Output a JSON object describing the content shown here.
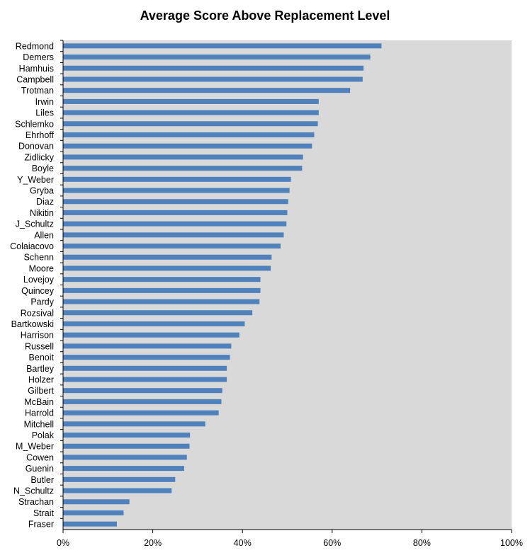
{
  "chart_data": {
    "type": "bar",
    "orientation": "horizontal",
    "title": "Average Score Above Replacement Level",
    "xlabel": "",
    "ylabel": "",
    "xlim": [
      0,
      1
    ],
    "x_ticks": [
      "0%",
      "20%",
      "40%",
      "60%",
      "80%",
      "100%"
    ],
    "grid": false,
    "legend": "none",
    "bar_color": "#4f81bd",
    "plot_background": "#d9d9d9",
    "categories": [
      "Redmond",
      "Demers",
      "Hamhuis",
      "Campbell",
      "Trotman",
      "Irwin",
      "Liles",
      "Schlemko",
      "Ehrhoff",
      "Donovan",
      "Zidlicky",
      "Boyle",
      "Y_Weber",
      "Gryba",
      "Diaz",
      "Nikitin",
      "J_Schultz",
      "Allen",
      "Colaiacovo",
      "Schenn",
      "Moore",
      "Lovejoy",
      "Quincey",
      "Pardy",
      "Rozsival",
      "Bartkowski",
      "Harrison",
      "Russell",
      "Benoit",
      "Bartley",
      "Holzer",
      "Gilbert",
      "McBain",
      "Harrold",
      "Mitchell",
      "Polak",
      "M_Weber",
      "Cowen",
      "Guenin",
      "Butler",
      "N_Schultz",
      "Strachan",
      "Strait",
      "Fraser"
    ],
    "values": [
      0.71,
      0.685,
      0.67,
      0.668,
      0.64,
      0.57,
      0.57,
      0.568,
      0.56,
      0.555,
      0.535,
      0.533,
      0.508,
      0.505,
      0.502,
      0.5,
      0.498,
      0.492,
      0.485,
      0.465,
      0.463,
      0.44,
      0.44,
      0.438,
      0.422,
      0.405,
      0.393,
      0.375,
      0.372,
      0.365,
      0.365,
      0.355,
      0.353,
      0.347,
      0.317,
      0.283,
      0.282,
      0.276,
      0.27,
      0.25,
      0.242,
      0.148,
      0.135,
      0.12
    ]
  }
}
